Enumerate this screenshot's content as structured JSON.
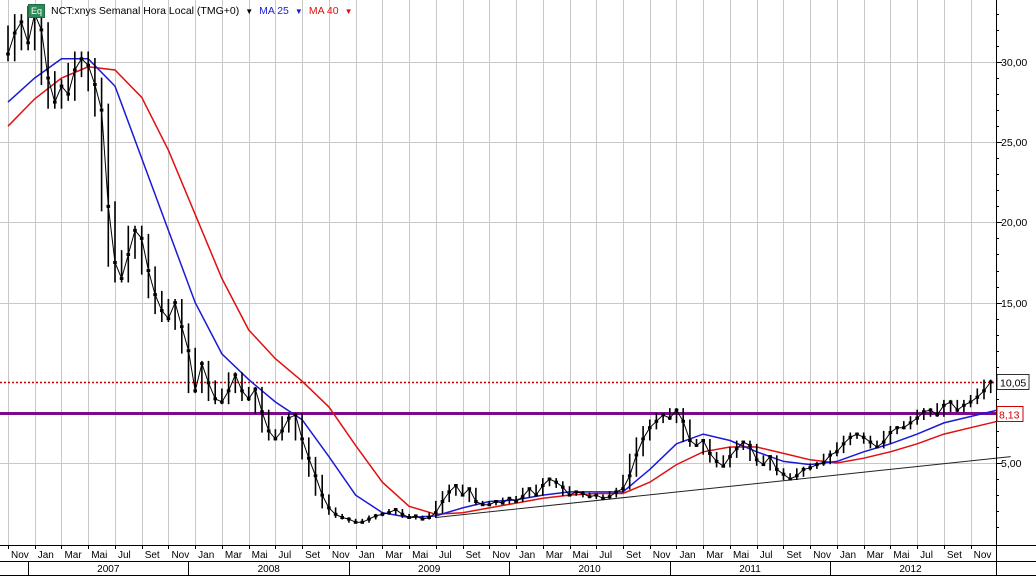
{
  "legend": {
    "badge": "Eq",
    "symbol": "NCT:xnys Semanal Hora Local (TMG+0)",
    "ma25": "MA 25",
    "ma40": "MA 40"
  },
  "colors": {
    "ma25": "#1a1ad6",
    "ma40": "#e01010",
    "price": "#000000",
    "support_line": "#7b0a8c",
    "resistance_line": "#cc0000",
    "trend_line": "#222222",
    "grid": "#c8c8c8"
  },
  "chart_data": {
    "type": "line",
    "ylim": [
      0,
      35
    ],
    "yticks": [
      "5,00",
      "15,00",
      "20,00",
      "25,00",
      "30,00"
    ],
    "ytick_values": [
      5,
      15,
      20,
      25,
      30
    ],
    "month_labels": [
      "Nov",
      "Jan",
      "Mar",
      "Mai",
      "Jul",
      "Set",
      "Nov",
      "Jan",
      "Mar",
      "Mai",
      "Jul",
      "Set",
      "Nov",
      "Jan",
      "Mar",
      "Mai",
      "Jul",
      "Set",
      "Nov",
      "Jan",
      "Mar",
      "Mai",
      "Jul",
      "Set",
      "Nov",
      "Jan",
      "Mar",
      "Mai",
      "Jul",
      "Set",
      "Nov",
      "Jan",
      "Mar",
      "Mai",
      "Jul",
      "Set",
      "Nov"
    ],
    "month_index": [
      0,
      2,
      4,
      6,
      8,
      10,
      12,
      14,
      16,
      18,
      20,
      22,
      24,
      26,
      28,
      30,
      32,
      34,
      36,
      38,
      40,
      42,
      44,
      46,
      48,
      50,
      52,
      54,
      56,
      58,
      60,
      62,
      64,
      66,
      68,
      70,
      72
    ],
    "year_labels": [
      "2007",
      "2008",
      "2009",
      "2010",
      "2011",
      "2012"
    ],
    "year_start_month": [
      2,
      14,
      26,
      38,
      50,
      62
    ],
    "x_months_span": [
      0,
      75
    ],
    "price": [
      [
        0,
        30.5
      ],
      [
        0.5,
        31.8
      ],
      [
        1,
        32.5
      ],
      [
        1.5,
        31.2
      ],
      [
        2,
        33.0
      ],
      [
        2.5,
        32.0
      ],
      [
        3,
        29.0
      ],
      [
        3.5,
        27.5
      ],
      [
        4,
        28.5
      ],
      [
        4.5,
        28.0
      ],
      [
        5,
        29.5
      ],
      [
        5.5,
        30.2
      ],
      [
        6,
        29.8
      ],
      [
        6.5,
        28.6
      ],
      [
        7,
        27.0
      ],
      [
        7.5,
        21.0
      ],
      [
        8,
        17.5
      ],
      [
        8.5,
        16.5
      ],
      [
        9,
        18.0
      ],
      [
        9.5,
        19.5
      ],
      [
        10,
        19.0
      ],
      [
        10.5,
        17.0
      ],
      [
        11,
        15.5
      ],
      [
        11.5,
        14.5
      ],
      [
        12,
        14.0
      ],
      [
        12.5,
        15.0
      ],
      [
        13,
        13.5
      ],
      [
        13.5,
        12.0
      ],
      [
        14,
        9.5
      ],
      [
        14.5,
        11.2
      ],
      [
        15,
        10.0
      ],
      [
        15.5,
        9.0
      ],
      [
        16,
        8.8
      ],
      [
        16.5,
        9.5
      ],
      [
        17,
        10.5
      ],
      [
        17.5,
        9.5
      ],
      [
        18,
        9.0
      ],
      [
        18.5,
        9.6
      ],
      [
        19,
        8.2
      ],
      [
        19.5,
        7.0
      ],
      [
        20,
        6.5
      ],
      [
        20.5,
        7.0
      ],
      [
        21,
        7.8
      ],
      [
        21.5,
        8.0
      ],
      [
        22,
        6.5
      ],
      [
        22.5,
        5.3
      ],
      [
        23,
        4.2
      ],
      [
        23.5,
        3.0
      ],
      [
        24,
        2.2
      ],
      [
        24.5,
        1.8
      ],
      [
        25,
        1.6
      ],
      [
        25.5,
        1.5
      ],
      [
        26,
        1.3
      ],
      [
        26.5,
        1.3
      ],
      [
        27,
        1.5
      ],
      [
        27.5,
        1.7
      ],
      [
        28,
        1.8
      ],
      [
        28.5,
        1.9
      ],
      [
        29,
        2.1
      ],
      [
        29.5,
        1.8
      ],
      [
        30,
        1.6
      ],
      [
        30.5,
        1.7
      ],
      [
        31,
        1.5
      ],
      [
        31.5,
        1.6
      ],
      [
        32,
        1.9
      ],
      [
        32.5,
        2.6
      ],
      [
        33,
        3.2
      ],
      [
        33.5,
        3.6
      ],
      [
        34,
        3.0
      ],
      [
        34.5,
        3.4
      ],
      [
        35,
        2.6
      ],
      [
        35.5,
        2.4
      ],
      [
        36,
        2.4
      ],
      [
        36.5,
        2.6
      ],
      [
        37,
        2.5
      ],
      [
        37.5,
        2.8
      ],
      [
        38,
        2.6
      ],
      [
        38.5,
        2.9
      ],
      [
        39,
        3.4
      ],
      [
        39.5,
        3.0
      ],
      [
        40,
        3.6
      ],
      [
        40.5,
        4.0
      ],
      [
        41,
        3.8
      ],
      [
        41.5,
        3.5
      ],
      [
        42,
        3.0
      ],
      [
        42.5,
        3.2
      ],
      [
        43,
        3.1
      ],
      [
        43.5,
        2.9
      ],
      [
        44,
        3.0
      ],
      [
        44.5,
        2.8
      ],
      [
        45,
        2.9
      ],
      [
        45.5,
        3.2
      ],
      [
        46,
        3.4
      ],
      [
        46.5,
        4.2
      ],
      [
        47,
        5.5
      ],
      [
        47.5,
        6.5
      ],
      [
        48,
        7.2
      ],
      [
        48.5,
        7.6
      ],
      [
        49,
        8.0
      ],
      [
        49.5,
        7.8
      ],
      [
        50,
        8.3
      ],
      [
        50.5,
        7.6
      ],
      [
        51,
        6.4
      ],
      [
        51.5,
        6.1
      ],
      [
        52,
        6.4
      ],
      [
        52.5,
        5.6
      ],
      [
        53,
        5.1
      ],
      [
        53.5,
        4.8
      ],
      [
        54,
        5.4
      ],
      [
        54.5,
        5.9
      ],
      [
        55,
        6.3
      ],
      [
        55.5,
        6.1
      ],
      [
        56,
        5.2
      ],
      [
        56.5,
        4.9
      ],
      [
        57,
        5.4
      ],
      [
        57.5,
        4.6
      ],
      [
        58,
        4.3
      ],
      [
        58.5,
        4.0
      ],
      [
        59,
        4.2
      ],
      [
        59.5,
        4.6
      ],
      [
        60,
        4.7
      ],
      [
        60.5,
        4.9
      ],
      [
        61,
        5.0
      ],
      [
        61.5,
        5.5
      ],
      [
        62,
        5.7
      ],
      [
        62.5,
        6.2
      ],
      [
        63,
        6.6
      ],
      [
        63.5,
        6.8
      ],
      [
        64,
        6.6
      ],
      [
        64.5,
        6.3
      ],
      [
        65,
        6.0
      ],
      [
        65.5,
        6.3
      ],
      [
        66,
        6.9
      ],
      [
        66.5,
        7.2
      ],
      [
        67,
        7.2
      ],
      [
        67.5,
        7.5
      ],
      [
        68,
        7.8
      ],
      [
        68.5,
        8.2
      ],
      [
        69,
        8.3
      ],
      [
        69.5,
        8.0
      ],
      [
        70,
        8.6
      ],
      [
        70.5,
        8.8
      ],
      [
        71,
        8.3
      ],
      [
        71.5,
        8.6
      ],
      [
        72,
        8.8
      ],
      [
        72.5,
        9.1
      ],
      [
        73,
        9.5
      ],
      [
        73.5,
        10.05
      ]
    ],
    "ma25": [
      [
        0,
        27.5
      ],
      [
        2,
        29.0
      ],
      [
        4,
        30.2
      ],
      [
        6,
        30.2
      ],
      [
        8,
        28.5
      ],
      [
        10,
        24.0
      ],
      [
        12,
        19.5
      ],
      [
        14,
        15.0
      ],
      [
        16,
        11.8
      ],
      [
        18,
        10.2
      ],
      [
        20,
        8.8
      ],
      [
        22,
        7.7
      ],
      [
        24,
        5.4
      ],
      [
        26,
        3.0
      ],
      [
        28,
        1.9
      ],
      [
        30,
        1.6
      ],
      [
        32,
        1.7
      ],
      [
        34,
        2.2
      ],
      [
        36,
        2.6
      ],
      [
        38,
        2.7
      ],
      [
        40,
        3.0
      ],
      [
        42,
        3.2
      ],
      [
        44,
        3.2
      ],
      [
        46,
        3.2
      ],
      [
        48,
        4.6
      ],
      [
        50,
        6.2
      ],
      [
        52,
        6.8
      ],
      [
        54,
        6.4
      ],
      [
        56,
        5.7
      ],
      [
        58,
        5.1
      ],
      [
        60,
        4.9
      ],
      [
        62,
        5.1
      ],
      [
        64,
        5.7
      ],
      [
        66,
        6.2
      ],
      [
        68,
        6.8
      ],
      [
        70,
        7.5
      ],
      [
        72,
        7.9
      ],
      [
        74,
        8.3
      ]
    ],
    "ma40": [
      [
        0,
        26.0
      ],
      [
        2,
        27.7
      ],
      [
        4,
        29.0
      ],
      [
        6,
        29.7
      ],
      [
        8,
        29.5
      ],
      [
        10,
        27.8
      ],
      [
        12,
        24.5
      ],
      [
        14,
        20.5
      ],
      [
        16,
        16.5
      ],
      [
        18,
        13.3
      ],
      [
        20,
        11.5
      ],
      [
        22,
        10.1
      ],
      [
        24,
        8.5
      ],
      [
        26,
        6.1
      ],
      [
        28,
        3.8
      ],
      [
        30,
        2.3
      ],
      [
        32,
        1.8
      ],
      [
        34,
        1.9
      ],
      [
        36,
        2.2
      ],
      [
        38,
        2.5
      ],
      [
        40,
        2.8
      ],
      [
        42,
        3.0
      ],
      [
        44,
        3.1
      ],
      [
        46,
        3.1
      ],
      [
        48,
        3.8
      ],
      [
        50,
        4.9
      ],
      [
        52,
        5.7
      ],
      [
        54,
        6.0
      ],
      [
        56,
        6.0
      ],
      [
        58,
        5.6
      ],
      [
        60,
        5.2
      ],
      [
        62,
        5.0
      ],
      [
        64,
        5.3
      ],
      [
        66,
        5.7
      ],
      [
        68,
        6.2
      ],
      [
        70,
        6.8
      ],
      [
        72,
        7.2
      ],
      [
        74,
        7.6
      ]
    ],
    "horizontal_lines": [
      {
        "value": 10.05,
        "label": "10,05",
        "style": "dotted"
      },
      {
        "value": 8.13,
        "label": "8,13",
        "style": "solid"
      }
    ],
    "trend_line": [
      [
        32,
        1.6
      ],
      [
        75,
        5.4
      ]
    ]
  }
}
